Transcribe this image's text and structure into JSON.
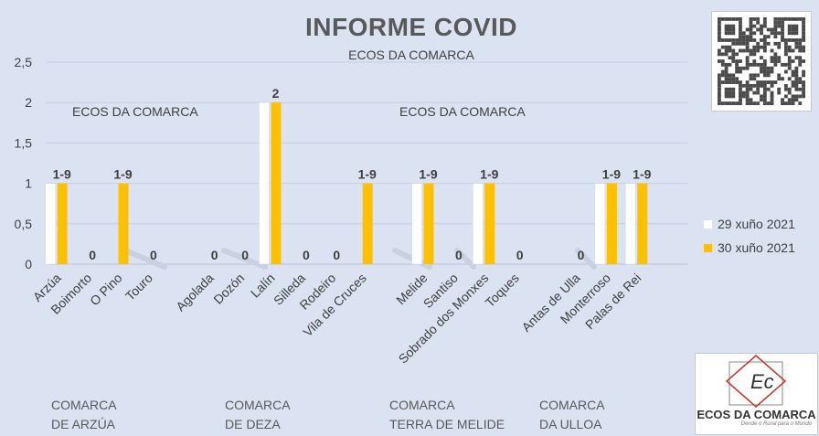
{
  "chart_data": {
    "type": "bar",
    "title": "INFORME COVID",
    "subtitle": "ECOS DA COMARCA",
    "watermarks": [
      "ECOS DA COMARCA",
      "ECOS DA COMARCA"
    ],
    "categories": [
      "Arzúa",
      "Boimorto",
      "O Pino",
      "Touro",
      "",
      "Agolada",
      "Dozón",
      "Lalín",
      "Silleda",
      "Rodeiro",
      "Vila de Cruces",
      "",
      "Melide",
      "Santiso",
      "Sobrado dos Monxes",
      "Toques",
      "",
      "Antas de Ulla",
      "Monterroso",
      "Palas de Rei"
    ],
    "series": [
      {
        "name": "29 xuño 2021",
        "color": "#ffffff",
        "values": [
          1,
          0,
          0,
          0,
          null,
          0,
          0,
          2,
          0,
          0,
          0,
          null,
          1,
          0,
          1,
          0,
          null,
          0,
          1,
          1
        ]
      },
      {
        "name": "30 xuño 2021",
        "color": "#ffc000",
        "values": [
          1,
          0,
          1,
          0,
          null,
          0,
          0,
          2,
          0,
          0,
          1,
          null,
          1,
          0,
          1,
          0,
          null,
          0,
          1,
          1
        ]
      }
    ],
    "data_labels": [
      "1-9",
      "0",
      "1-9",
      "0",
      "",
      "0",
      "0",
      "2",
      "0",
      "0",
      "1-9",
      "",
      "1-9",
      "0",
      "1-9",
      "0",
      "",
      "0",
      "1-9",
      "1-9"
    ],
    "ylim": [
      0,
      2.5
    ],
    "yticks": [
      "0",
      "0,5",
      "1",
      "1,5",
      "2",
      "2,5"
    ],
    "grid": true,
    "legend_position": "right",
    "groups": [
      {
        "line1": "COMARCA",
        "line2": "DE ARZÚA"
      },
      {
        "line1": "COMARCA",
        "line2": "DE DEZA"
      },
      {
        "line1": "COMARCA",
        "line2": "TERRA DE MELIDE"
      },
      {
        "line1": "COMARCA",
        "line2": "DA ULLOA"
      }
    ]
  },
  "logo": {
    "name": "ECOS DA COMARCA",
    "tagline": "Dende o Rural para o Mundo",
    "monogram": "Ec"
  }
}
